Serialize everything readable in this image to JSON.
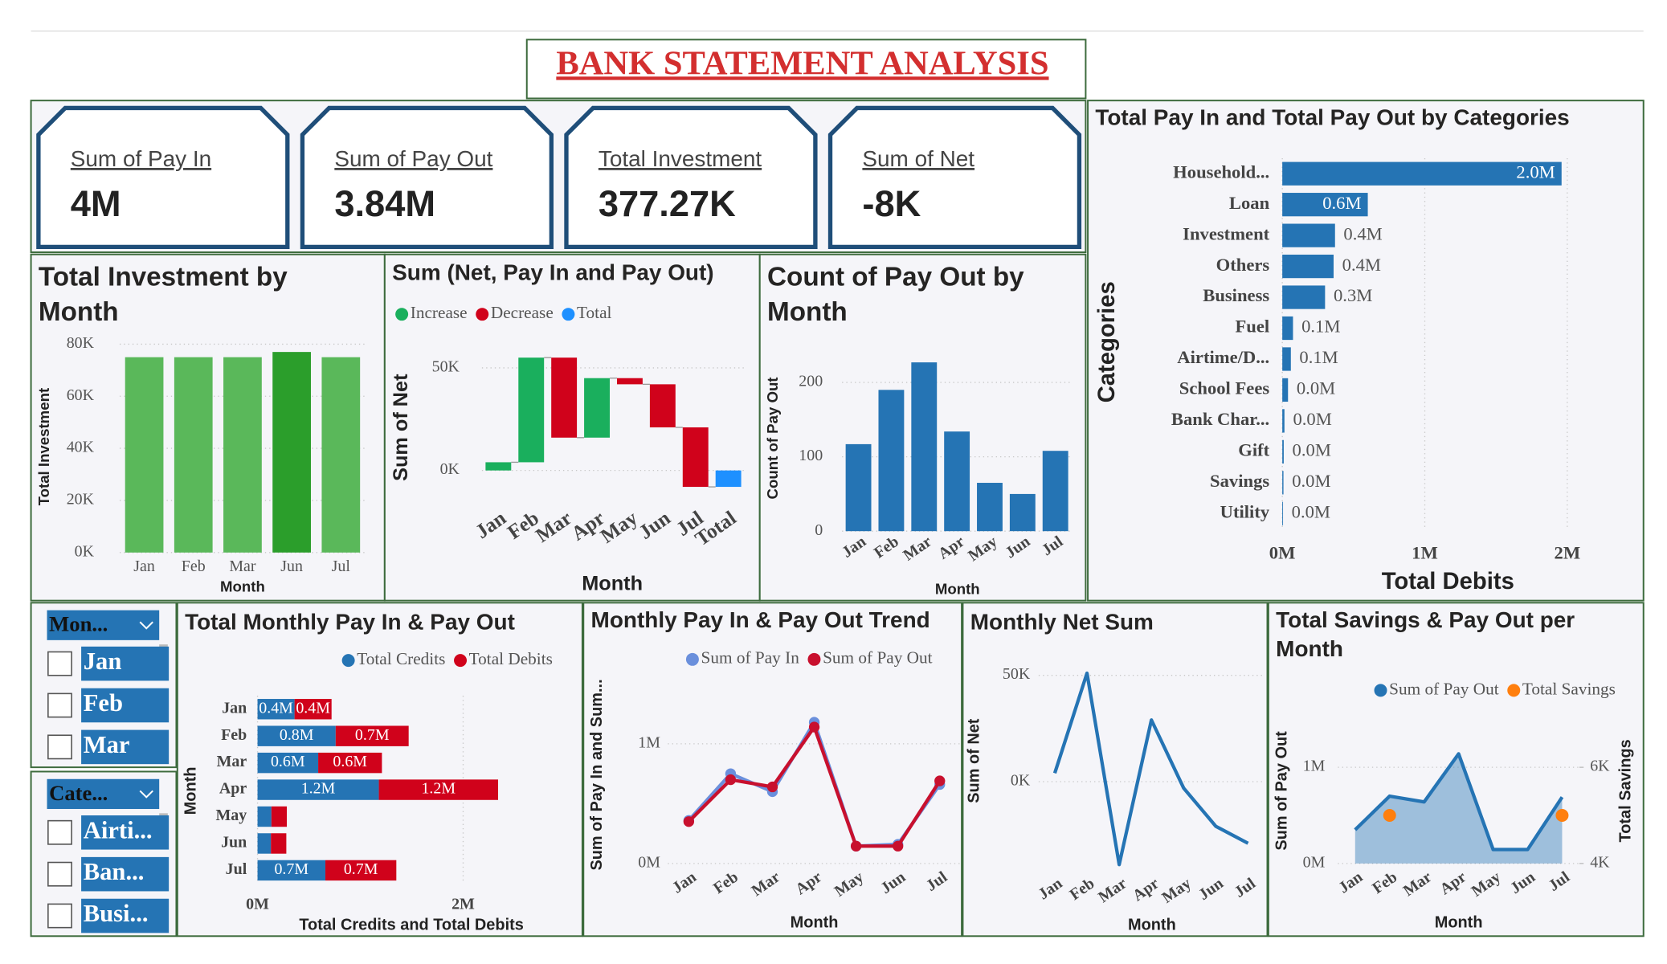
{
  "title": "BANK STATEMENT ANALYSIS",
  "kpis": [
    {
      "label": "Sum of Pay In",
      "value": "4M"
    },
    {
      "label": "Sum of Pay Out",
      "value": "3.84M"
    },
    {
      "label": "Total Investment",
      "value": "377.27K"
    },
    {
      "label": "Sum of Net",
      "value": "-8K"
    }
  ],
  "slicers": [
    {
      "title": "Mon...",
      "items": [
        "Jan",
        "Feb",
        "Mar"
      ]
    },
    {
      "title": "Cate...",
      "items": [
        "Airti...",
        "Ban...",
        "Busi..."
      ]
    }
  ],
  "chart_data": [
    {
      "type": "bar",
      "title": "Total Investment by Month",
      "x_label": "Month",
      "y_label": "Total Investment",
      "categories": [
        "Jan",
        "Feb",
        "Mar",
        "Jun",
        "Jul"
      ],
      "values": [
        75000,
        75000,
        75000,
        77000,
        75000
      ],
      "colors": [
        "#5ab85a",
        "#5ab85a",
        "#5ab85a",
        "#2b9e2b",
        "#5ab85a"
      ],
      "ylim": [
        0,
        80000
      ],
      "yticks": [
        {
          "value": 0,
          "label": "0K"
        },
        {
          "value": 20000,
          "label": "20K"
        },
        {
          "value": 40000,
          "label": "40K"
        },
        {
          "value": 60000,
          "label": "60K"
        },
        {
          "value": 80000,
          "label": "80K"
        }
      ],
      "grid": true
    },
    {
      "type": "waterfall",
      "title": "Sum (Net, Pay In and Pay Out)",
      "x_label": "Month",
      "y_label": "Sum of Net",
      "categories": [
        "Jan",
        "Feb",
        "Mar",
        "Apr",
        "May",
        "Jun",
        "Jul",
        "Total"
      ],
      "values": [
        4000,
        51000,
        -39000,
        29000,
        -3000,
        -21000,
        -29000,
        -8000
      ],
      "is_total": [
        false,
        false,
        false,
        false,
        false,
        false,
        false,
        true
      ],
      "legend": [
        {
          "name": "Increase",
          "color": "#1aaf5d"
        },
        {
          "name": "Decrease",
          "color": "#d0021b"
        },
        {
          "name": "Total",
          "color": "#1e90ff"
        }
      ],
      "ylim": [
        -15000,
        60000
      ],
      "yticks": [
        {
          "value": 0,
          "label": "0K"
        },
        {
          "value": 50000,
          "label": "50K"
        }
      ],
      "grid": true
    },
    {
      "type": "bar",
      "title": "Count of Pay Out by Month",
      "x_label": "Month",
      "y_label": "Count of Pay Out",
      "categories": [
        "Jan",
        "Feb",
        "Mar",
        "Apr",
        "May",
        "Jun",
        "Jul"
      ],
      "values": [
        117,
        190,
        227,
        134,
        65,
        50,
        108
      ],
      "color": "#2574b4",
      "ylim": [
        0,
        240
      ],
      "yticks": [
        0,
        100,
        200
      ],
      "grid": true
    },
    {
      "type": "bar",
      "orientation": "horizontal",
      "title": "Total Pay In and Total Pay Out by Categories",
      "x_label": "Total Debits",
      "y_label": "Categories",
      "categories": [
        "Household...",
        "Loan",
        "Investment",
        "Others",
        "Business",
        "Fuel",
        "Airtime/D...",
        "School Fees",
        "Bank Char...",
        "Gift",
        "Savings",
        "Utility"
      ],
      "values": [
        1960000,
        600000,
        370000,
        360000,
        300000,
        75000,
        60000,
        40000,
        15000,
        10000,
        8000,
        5000
      ],
      "value_labels": [
        "2.0M",
        "0.6M",
        "0.4M",
        "0.4M",
        "0.3M",
        "0.1M",
        "0.1M",
        "0.0M",
        "0.0M",
        "0.0M",
        "0.0M",
        "0.0M"
      ],
      "color": "#2574b4",
      "xlim": [
        0,
        2100000
      ],
      "xticks": [
        {
          "value": 0,
          "label": "0M"
        },
        {
          "value": 1000000,
          "label": "1M"
        },
        {
          "value": 2000000,
          "label": "2M"
        }
      ],
      "grid": true
    },
    {
      "type": "bar",
      "orientation": "horizontal",
      "stacked": true,
      "title": "Total Monthly Pay In & Pay Out",
      "x_label": "Total Credits and Total Debits",
      "y_label": "Month",
      "categories": [
        "Jan",
        "Feb",
        "Mar",
        "Apr",
        "May",
        "Jun",
        "Jul"
      ],
      "series": [
        {
          "name": "Total Credits",
          "color": "#2574b4",
          "values": [
            360000,
            760000,
            590000,
            1180000,
            135000,
            130000,
            660000
          ],
          "value_labels": [
            "0.4M",
            "0.8M",
            "0.6M",
            "1.2M",
            null,
            null,
            "0.7M"
          ]
        },
        {
          "name": "Total Debits",
          "color": "#d0021b",
          "values": [
            360000,
            710000,
            620000,
            1160000,
            150000,
            150000,
            690000
          ],
          "value_labels": [
            "0.4M",
            "0.7M",
            "0.6M",
            "1.2M",
            null,
            null,
            "0.7M"
          ]
        }
      ],
      "xlim": [
        0,
        2900000
      ],
      "xticks": [
        {
          "value": 0,
          "label": "0M"
        },
        {
          "value": 2000000,
          "label": "2M"
        }
      ],
      "grid": true
    },
    {
      "type": "line",
      "title": "Monthly Pay In & Pay Out Trend",
      "x_label": "Month",
      "y_label": "Sum of Pay In and Sum...",
      "categories": [
        "Jan",
        "Feb",
        "Mar",
        "Apr",
        "May",
        "Jun",
        "Jul"
      ],
      "series": [
        {
          "name": "Sum of Pay In",
          "color": "#6a8fdc",
          "values": [
            360000,
            750000,
            600000,
            1180000,
            145000,
            160000,
            660000
          ]
        },
        {
          "name": "Sum of Pay Out",
          "color": "#c8102e",
          "values": [
            350000,
            700000,
            640000,
            1140000,
            145000,
            145000,
            690000
          ]
        }
      ],
      "markers": true,
      "ylim": [
        0,
        1500000
      ],
      "yticks": [
        {
          "value": 0,
          "label": "0M"
        },
        {
          "value": 1000000,
          "label": "1M"
        }
      ],
      "grid": true
    },
    {
      "type": "line",
      "title": "Monthly Net Sum",
      "x_label": "Month",
      "y_label": "Sum of Net",
      "categories": [
        "Jan",
        "Feb",
        "Mar",
        "Apr",
        "May",
        "Jun",
        "Jul"
      ],
      "values": [
        4000,
        51000,
        -39000,
        29000,
        -3000,
        -21000,
        -29000
      ],
      "color": "#2574b4",
      "ylim": [
        -42000,
        56000
      ],
      "yticks": [
        {
          "value": 0,
          "label": "0K"
        },
        {
          "value": 50000,
          "label": "50K"
        }
      ],
      "grid": true
    },
    {
      "type": "area",
      "title": "Total Savings & Pay Out per Month",
      "x_label": "Month",
      "y_label": "Sum of Pay Out",
      "y2_label": "Total Savings",
      "categories": [
        "Jan",
        "Feb",
        "Mar",
        "Apr",
        "May",
        "Jun",
        "Jul"
      ],
      "series": [
        {
          "name": "Sum of Pay Out",
          "color": "#2574b4",
          "values": [
            350000,
            700000,
            640000,
            1140000,
            145000,
            145000,
            690000
          ]
        },
        {
          "name": "Total Savings",
          "color": "#ff7f0e",
          "type": "scatter",
          "axis": "y2",
          "values": [
            null,
            5000,
            null,
            null,
            null,
            null,
            5000
          ]
        }
      ],
      "ylim": [
        0,
        1300000
      ],
      "yticks": [
        {
          "value": 0,
          "label": "0M"
        },
        {
          "value": 1000000,
          "label": "1M"
        }
      ],
      "y2lim": [
        4000,
        6600
      ],
      "y2ticks": [
        {
          "value": 4000,
          "label": "4K"
        },
        {
          "value": 6000,
          "label": "6K"
        }
      ],
      "grid": true
    }
  ]
}
